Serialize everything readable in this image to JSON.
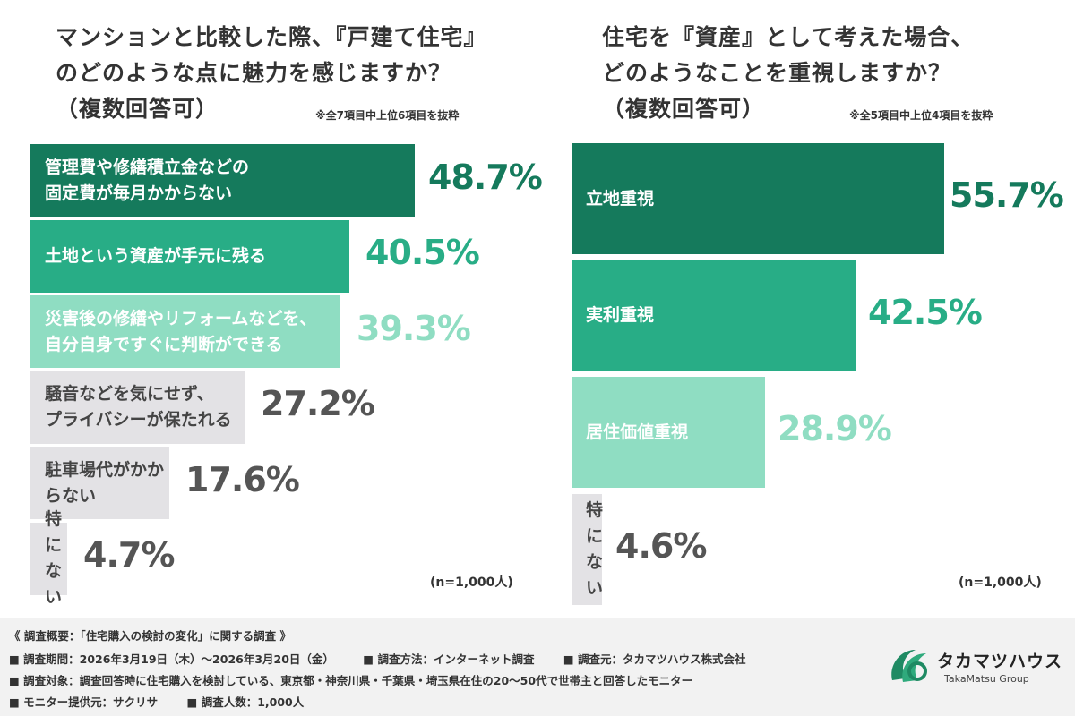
{
  "chart_data": [
    {
      "type": "bar",
      "orientation": "horizontal",
      "title_lines": [
        "マンションと比較した際、『戸建て住宅』",
        "のどのような点に魅力を感じますか？",
        "（複数回答可）"
      ],
      "note": "※全7項目中上位6項目を抜粋",
      "n_label": "(n=1,000人)",
      "categories": [
        "管理費や修繕積立金などの\n固定費が毎月かからない",
        "土地という資産が手元に残る",
        "災害後の修繕やリフォームなどを、\n自分自身ですぐに判断ができる",
        "騒音などを気にせず、\nプライバシーが保たれる",
        "駐車場代がかからない",
        "特にない"
      ],
      "values": [
        48.7,
        40.5,
        39.3,
        27.2,
        17.6,
        4.7
      ],
      "value_labels": [
        "48.7%",
        "40.5%",
        "39.3%",
        "27.2%",
        "17.6%",
        "4.7%"
      ],
      "unit": "%",
      "colors": [
        "#157a5c",
        "#28ad86",
        "#8fddc2",
        "#e3e2e5",
        "#e3e2e5",
        "#e3e2e5"
      ]
    },
    {
      "type": "bar",
      "orientation": "horizontal",
      "title_lines": [
        "住宅を『資産』として考えた場合、",
        "どのようなことを重視しますか？",
        "（複数回答可）"
      ],
      "note": "※全5項目中上位4項目を抜粋",
      "n_label": "(n=1,000人)",
      "categories": [
        "立地重視",
        "実利重視",
        "居住価値重視",
        "特にない"
      ],
      "values": [
        55.7,
        42.5,
        28.9,
        4.6
      ],
      "value_labels": [
        "55.7%",
        "42.5%",
        "28.9%",
        "4.6%"
      ],
      "unit": "%",
      "colors": [
        "#157a5c",
        "#28ad86",
        "#8fddc2",
        "#e3e2e5"
      ]
    }
  ],
  "footer": {
    "heading": "《 調査概要：「住宅購入の検討の変化」に関する調査 》",
    "period": "■ 調査期間：2026年3月19日（木）～2026年3月20日（金）",
    "method": "■ 調査方法：インターネット調査",
    "source": "■ 調査元：タカマツハウス株式会社",
    "target": "■ 調査対象：調査回答時に住宅購入を検討している、東京都・神奈川県・千葉県・埼玉県在住の20～50代で世帯主と回答したモニター",
    "provider": "■ モニター提供元：サクリサ",
    "count": "■ 調査人数：1,000人"
  },
  "logo": {
    "name": "タカマツハウス",
    "sub": "TakaMatsu Group"
  }
}
